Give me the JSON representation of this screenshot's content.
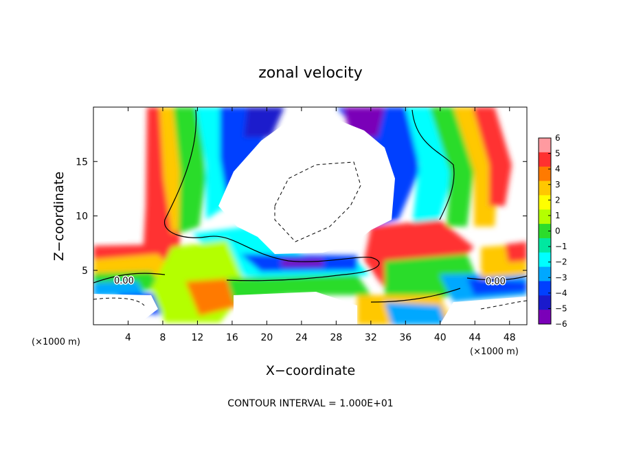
{
  "chart_data": {
    "type": "heatmap",
    "title": "zonal velocity",
    "xlabel": "X−coordinate",
    "ylabel": "Z−coordinate",
    "x_unit_left": "(×1000 m)",
    "x_unit_right": "(×1000 m)",
    "footer": "CONTOUR INTERVAL = 1.000E+01",
    "xlim": [
      0,
      50
    ],
    "ylim": [
      0,
      20
    ],
    "x_ticks": [
      4,
      8,
      12,
      16,
      20,
      24,
      28,
      32,
      36,
      40,
      44,
      48
    ],
    "y_ticks": [
      5,
      10,
      15
    ],
    "colorbar": {
      "ticks": [
        6,
        5,
        4,
        3,
        2,
        1,
        0,
        -1,
        -2,
        -3,
        -4,
        -5,
        -6
      ],
      "tick_labels": [
        "6",
        "5",
        "4",
        "3",
        "2",
        "1",
        "0",
        "−1",
        "−2",
        "−3",
        "−4",
        "−5",
        "−6"
      ],
      "colors": [
        "#ff9aa0",
        "#ff3030",
        "#ff7a00",
        "#ffc800",
        "#ffff00",
        "#b4ff00",
        "#2cdc2c",
        "#00e8a0",
        "#00ffff",
        "#00a8ff",
        "#0040ff",
        "#1a1acc",
        "#7a00b8"
      ]
    },
    "contour_labels": [
      "0.00",
      "0.00"
    ],
    "grid": false,
    "legend": "right"
  }
}
